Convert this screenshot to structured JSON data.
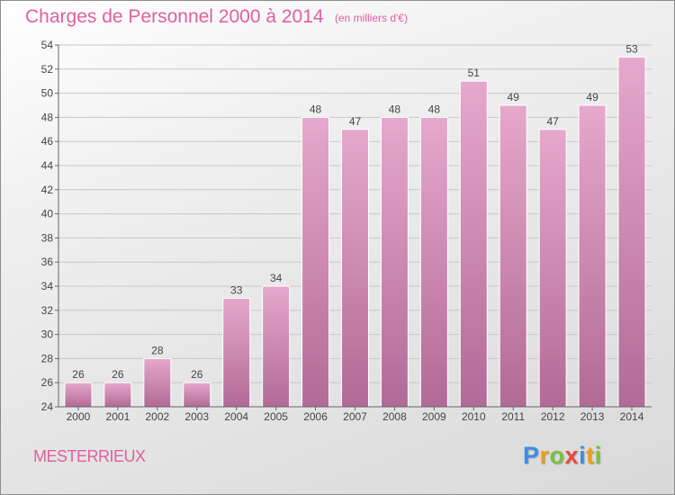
{
  "header": {
    "title": "Charges de Personnel 2000 à 2014",
    "subtitle": "(en milliers d'€)"
  },
  "commune": "MESTERRIEUX",
  "brand": {
    "letters": [
      "P",
      "r",
      "o",
      "x",
      "i",
      "t",
      "i"
    ],
    "colors": [
      "#3a8ee6",
      "#e8a020",
      "#7ac142",
      "#e84a3c",
      "#3a8ee6",
      "#e8a020",
      "#7ac142"
    ]
  },
  "colors": {
    "accent": "#e060a0",
    "bar_top": "#e6a8cc",
    "bar_bottom": "#b26a96",
    "bar_stroke": "#ffffff"
  },
  "chart_data": {
    "type": "bar",
    "title": "Charges de Personnel 2000 à 2014",
    "categories": [
      "2000",
      "2001",
      "2002",
      "2003",
      "2004",
      "2005",
      "2006",
      "2007",
      "2008",
      "2009",
      "2010",
      "2011",
      "2012",
      "2013",
      "2014"
    ],
    "values": [
      26,
      26,
      28,
      26,
      33,
      34,
      48,
      47,
      48,
      48,
      51,
      49,
      47,
      49,
      53
    ],
    "ylim": [
      24,
      54
    ],
    "yticks": [
      24,
      26,
      28,
      30,
      32,
      34,
      36,
      38,
      40,
      42,
      44,
      46,
      48,
      50,
      52,
      54
    ],
    "grid": true,
    "xlabel": "",
    "ylabel": ""
  }
}
